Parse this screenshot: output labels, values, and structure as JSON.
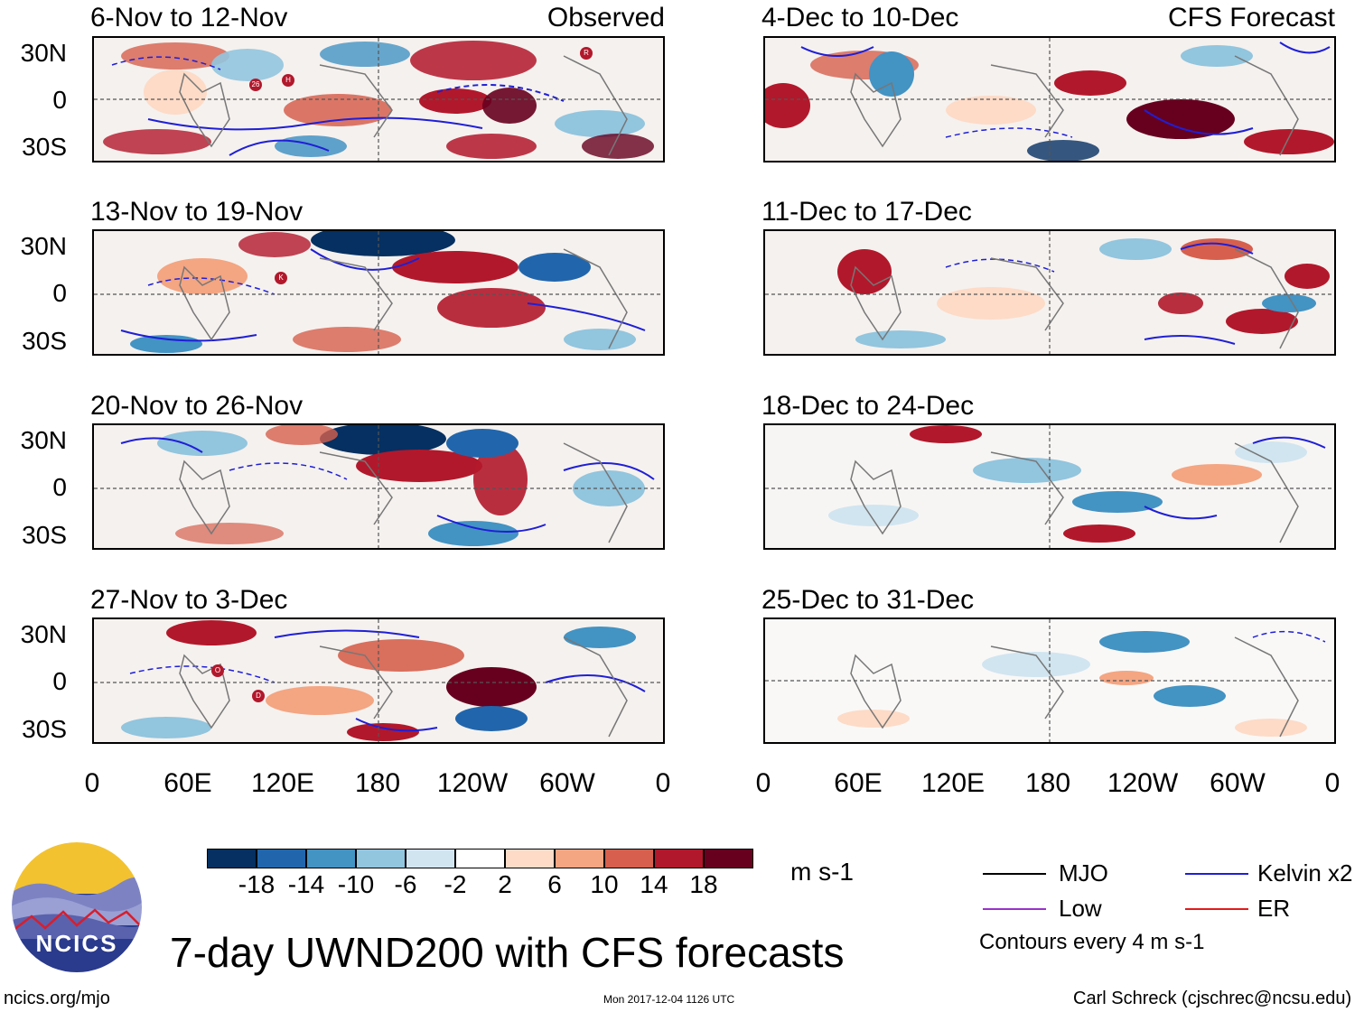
{
  "panels": {
    "left": [
      {
        "title": "6-Nov to 12-Nov",
        "tag": "Observed"
      },
      {
        "title": "13-Nov to 19-Nov",
        "tag": ""
      },
      {
        "title": "20-Nov to 26-Nov",
        "tag": ""
      },
      {
        "title": "27-Nov to 3-Dec",
        "tag": ""
      }
    ],
    "right": [
      {
        "title": "4-Dec to 10-Dec",
        "tag": "CFS Forecast"
      },
      {
        "title": "11-Dec to 17-Dec",
        "tag": ""
      },
      {
        "title": "18-Dec to 24-Dec",
        "tag": ""
      },
      {
        "title": "25-Dec to 31-Dec",
        "tag": ""
      }
    ]
  },
  "axes": {
    "lat_labels": [
      "30N",
      "0",
      "30S"
    ],
    "lon_labels": [
      "0",
      "60E",
      "120E",
      "180",
      "120W",
      "60W",
      "0"
    ]
  },
  "storm_markers": [
    {
      "panel": "left-0",
      "symbol": "R"
    },
    {
      "panel": "left-0",
      "symbol": "26"
    },
    {
      "panel": "left-0",
      "symbol": "H"
    },
    {
      "panel": "left-1",
      "symbol": "K"
    },
    {
      "panel": "left-3",
      "symbol": "O"
    },
    {
      "panel": "left-3",
      "symbol": "D"
    }
  ],
  "colorbar": {
    "unit": "m s-1",
    "labels": [
      "-18",
      "-14",
      "-10",
      "-6",
      "-2",
      "2",
      "6",
      "10",
      "14",
      "18"
    ],
    "colors": [
      "#053061",
      "#2166ac",
      "#4393c3",
      "#92c5de",
      "#d1e5f0",
      "#ffffff",
      "#fddbc7",
      "#f4a582",
      "#d6604d",
      "#b2182b",
      "#67001f"
    ]
  },
  "legend": {
    "items": [
      {
        "label": "MJO",
        "color": "#000000"
      },
      {
        "label": "Kelvin x2",
        "color": "#1f1fd6"
      },
      {
        "label": "Low",
        "color": "#9932cc"
      },
      {
        "label": "ER",
        "color": "#e31a1c"
      }
    ],
    "note": "Contours every 4 m s-1"
  },
  "logo": {
    "text": "NCICS"
  },
  "main_title": "7-day UWND200 with CFS forecasts",
  "footer": {
    "url": "ncics.org/mjo",
    "timestamp": "Mon 2017-12-04 1126 UTC",
    "credit": "Carl Schreck (cjschrec@ncsu.edu)"
  }
}
